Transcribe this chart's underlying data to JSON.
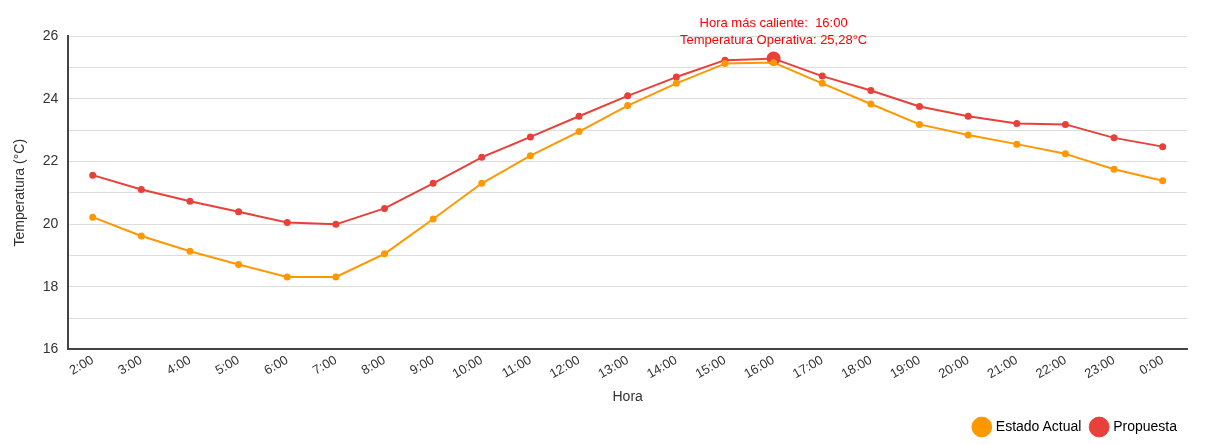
{
  "chart_data": {
    "type": "line",
    "xlabel": "Hora",
    "ylabel": "Temperatura (°C)",
    "categories": [
      "2:00",
      "3:00",
      "4:00",
      "5:00",
      "6:00",
      "7:00",
      "8:00",
      "9:00",
      "10:00",
      "11:00",
      "12:00",
      "13:00",
      "14:00",
      "15:00",
      "16:00",
      "17:00",
      "18:00",
      "19:00",
      "20:00",
      "21:00",
      "22:00",
      "23:00",
      "0:00"
    ],
    "series": [
      {
        "name": "Estado Actual",
        "color": "#ff9800",
        "values": [
          20.22,
          19.62,
          19.13,
          18.71,
          18.31,
          18.31,
          19.05,
          20.16,
          21.3,
          22.18,
          22.95,
          23.78,
          24.49,
          25.12,
          25.15,
          24.49,
          23.83,
          23.18,
          22.84,
          22.55,
          22.24,
          21.75,
          21.38
        ]
      },
      {
        "name": "Propuesta",
        "color": "#e8403a",
        "values": [
          21.56,
          21.1,
          20.73,
          20.39,
          20.05,
          19.99,
          20.5,
          21.3,
          22.13,
          22.78,
          23.44,
          24.09,
          24.69,
          25.23,
          25.28,
          24.72,
          24.26,
          23.75,
          23.44,
          23.21,
          23.18,
          22.75,
          22.47
        ]
      }
    ],
    "ylim": [
      16,
      26
    ],
    "yticks": [
      16,
      {
        "value": 17,
        "label": null
      },
      18,
      {
        "value": 19,
        "label": null
      },
      20,
      {
        "value": 21,
        "label": null
      },
      22,
      {
        "value": 23,
        "label": null
      },
      24,
      {
        "value": 25,
        "label": null
      },
      26
    ],
    "grid": "y",
    "legend": "bottom right",
    "marker": "circle",
    "line_style": "solid",
    "annotations": [
      {
        "text": "Hora más caliente:  16:00",
        "x": "16:00",
        "y": 25.28
      },
      {
        "text": "Temperatura Operativa: 25,28°C",
        "x": "16:00",
        "y": 25.28
      }
    ]
  }
}
